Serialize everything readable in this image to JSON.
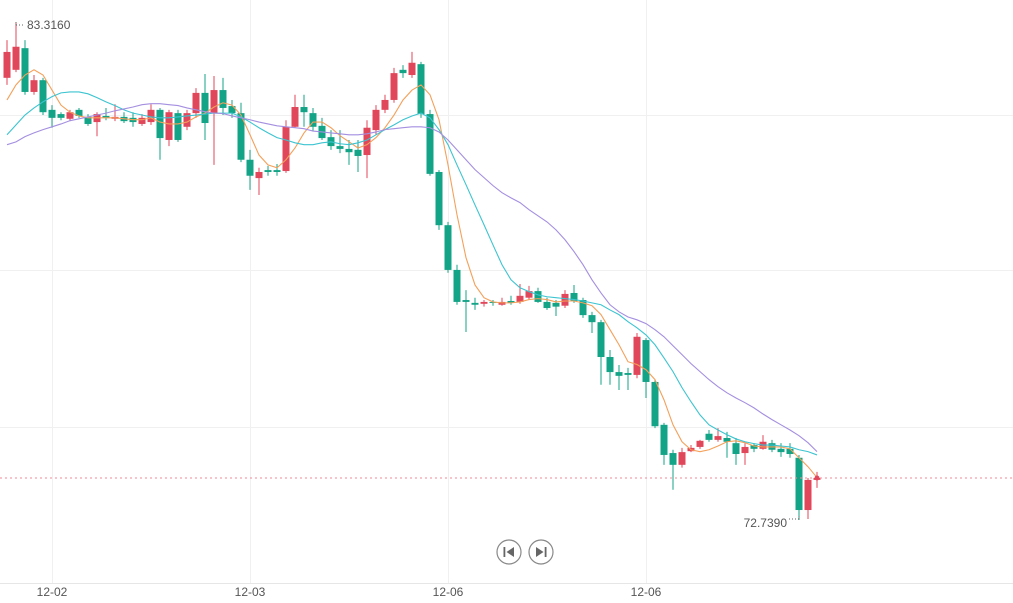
{
  "chart_data": {
    "type": "candlestick",
    "x": [
      null,
      null,
      null,
      null,
      null,
      "12-02",
      null,
      null,
      null,
      null,
      null,
      null,
      null,
      null,
      null,
      null,
      null,
      null,
      null,
      null,
      null,
      null,
      null,
      null,
      null,
      null,
      null,
      "12-03",
      null,
      null,
      null,
      null,
      null,
      null,
      null,
      null,
      null,
      null,
      null,
      null,
      null,
      null,
      null,
      null,
      null,
      null,
      null,
      null,
      null,
      "12-06",
      null,
      null,
      null,
      null,
      null,
      null,
      null,
      null,
      null,
      null,
      null,
      null,
      null,
      null,
      null,
      null,
      null,
      null,
      null,
      null,
      null,
      "12-06",
      null,
      null,
      null,
      null,
      null,
      null,
      null,
      null,
      null,
      null,
      null,
      null,
      null,
      null,
      null,
      null,
      null,
      null,
      null
    ],
    "open": [
      82.13,
      82.3,
      82.76,
      81.83,
      82.08,
      81.45,
      81.36,
      81.26,
      81.45,
      81.3,
      81.19,
      81.32,
      81.26,
      81.3,
      81.28,
      81.15,
      81.19,
      81.45,
      80.81,
      81.38,
      81.09,
      81.38,
      81.81,
      81.38,
      81.87,
      81.53,
      81.38,
      80.39,
      80.0,
      80.17,
      80.17,
      80.15,
      81.09,
      81.51,
      81.38,
      81.11,
      80.87,
      80.68,
      80.62,
      80.6,
      80.49,
      81.02,
      81.45,
      81.66,
      82.3,
      82.19,
      82.42,
      81.36,
      80.13,
      79.0,
      78.05,
      77.41,
      77.35,
      77.33,
      77.37,
      77.31,
      77.39,
      77.37,
      77.46,
      77.6,
      77.37,
      77.35,
      77.29,
      77.56,
      77.41,
      77.09,
      76.94,
      76.2,
      75.88,
      75.86,
      75.82,
      76.56,
      75.67,
      74.76,
      74.16,
      73.91,
      74.2,
      74.29,
      74.57,
      74.44,
      74.48,
      74.37,
      74.16,
      74.33,
      74.25,
      74.37,
      74.25,
      74.25,
      74.06,
      72.95,
      73.59
    ],
    "high": [
      82.93,
      83.316,
      82.93,
      82.19,
      82.13,
      81.55,
      81.4,
      81.45,
      81.49,
      81.36,
      81.4,
      81.49,
      81.57,
      81.4,
      81.4,
      81.36,
      81.57,
      81.49,
      81.45,
      81.45,
      81.45,
      81.91,
      82.21,
      82.17,
      82.13,
      81.66,
      81.6,
      80.6,
      80.22,
      80.26,
      80.3,
      81.23,
      81.77,
      81.77,
      81.49,
      81.28,
      81.02,
      81.02,
      80.81,
      80.81,
      81.23,
      81.55,
      81.77,
      82.34,
      82.4,
      82.68,
      82.47,
      81.45,
      80.17,
      79.07,
      78.16,
      77.62,
      77.46,
      77.41,
      77.41,
      77.46,
      77.5,
      77.75,
      77.71,
      77.67,
      77.46,
      77.41,
      77.62,
      77.73,
      77.46,
      77.16,
      76.99,
      76.35,
      76.03,
      75.97,
      76.71,
      76.6,
      75.71,
      74.8,
      74.23,
      74.27,
      74.33,
      74.44,
      74.65,
      74.69,
      74.61,
      74.48,
      74.37,
      74.37,
      74.54,
      74.44,
      74.37,
      74.37,
      74.12,
      73.63,
      73.76
    ],
    "low": [
      81.98,
      82.25,
      81.77,
      81.77,
      81.34,
      81.07,
      81.23,
      81.21,
      81.28,
      81.11,
      80.89,
      81.23,
      81.21,
      81.17,
      81.09,
      81.11,
      81.13,
      80.39,
      80.68,
      80.77,
      81.02,
      81.28,
      80.81,
      80.28,
      81.34,
      81.28,
      80.34,
      79.75,
      79.64,
      80.05,
      80.05,
      80.11,
      81.07,
      81.09,
      81.0,
      80.81,
      80.6,
      80.53,
      80.28,
      80.13,
      80.0,
      80.92,
      81.38,
      81.6,
      82.13,
      82.13,
      81.28,
      80.05,
      78.9,
      77.99,
      77.31,
      76.73,
      77.2,
      77.27,
      77.29,
      77.29,
      77.31,
      77.33,
      77.41,
      77.35,
      77.2,
      77.07,
      77.24,
      77.35,
      77.03,
      76.71,
      75.61,
      75.61,
      75.5,
      75.5,
      75.75,
      75.33,
      74.69,
      73.91,
      73.38,
      73.85,
      74.18,
      74.25,
      74.4,
      74.4,
      74.06,
      73.91,
      73.91,
      74.18,
      74.23,
      74.18,
      74.08,
      74.06,
      72.739,
      72.76,
      73.42
    ],
    "close": [
      82.68,
      82.79,
      81.83,
      82.08,
      81.4,
      81.28,
      81.28,
      81.4,
      81.32,
      81.15,
      81.36,
      81.28,
      81.3,
      81.21,
      81.19,
      81.28,
      81.45,
      80.85,
      81.4,
      80.81,
      81.38,
      81.81,
      81.17,
      81.87,
      81.49,
      81.38,
      80.39,
      80.05,
      80.13,
      80.13,
      80.13,
      81.09,
      81.51,
      81.4,
      81.09,
      80.85,
      80.68,
      80.62,
      80.55,
      80.47,
      81.07,
      81.45,
      81.66,
      82.23,
      82.23,
      82.45,
      81.36,
      80.09,
      79.0,
      78.05,
      77.37,
      77.37,
      77.31,
      77.37,
      77.35,
      77.37,
      77.35,
      77.5,
      77.6,
      77.37,
      77.24,
      77.27,
      77.54,
      77.39,
      77.09,
      76.94,
      76.2,
      75.88,
      75.8,
      75.82,
      76.63,
      75.67,
      74.73,
      74.12,
      73.91,
      74.18,
      74.27,
      74.42,
      74.44,
      74.52,
      74.4,
      74.14,
      74.29,
      74.25,
      74.4,
      74.23,
      74.18,
      74.14,
      72.95,
      73.59,
      73.63
    ],
    "up_color": "#e0475b",
    "down_color": "#13a386",
    "lines": [
      {
        "color": "#f4a05a",
        "values": [
          81.66,
          81.98,
          82.19,
          82.3,
          82.19,
          81.87,
          81.55,
          81.4,
          81.32,
          81.28,
          81.28,
          81.28,
          81.28,
          81.26,
          81.24,
          81.24,
          81.28,
          81.19,
          81.15,
          81.15,
          81.19,
          81.3,
          81.38,
          81.51,
          81.6,
          81.55,
          81.34,
          80.92,
          80.49,
          80.28,
          80.22,
          80.39,
          80.64,
          80.96,
          81.19,
          81.19,
          81.07,
          80.9,
          80.77,
          80.64,
          80.71,
          80.86,
          81.07,
          81.34,
          81.66,
          81.87,
          81.98,
          81.77,
          81.24,
          80.28,
          79.22,
          78.31,
          77.73,
          77.46,
          77.37,
          77.35,
          77.35,
          77.37,
          77.42,
          77.44,
          77.42,
          77.37,
          77.39,
          77.39,
          77.35,
          77.29,
          77.1,
          76.78,
          76.46,
          76.1,
          76.04,
          75.93,
          75.72,
          75.29,
          74.76,
          74.4,
          74.23,
          74.19,
          74.23,
          74.31,
          74.4,
          74.42,
          74.38,
          74.31,
          74.29,
          74.29,
          74.29,
          74.25,
          74.06,
          73.87,
          73.64
        ]
      },
      {
        "color": "#3cc4d0",
        "values": [
          80.92,
          81.13,
          81.34,
          81.49,
          81.62,
          81.73,
          81.81,
          81.83,
          81.83,
          81.79,
          81.71,
          81.62,
          81.54,
          81.45,
          81.38,
          81.34,
          81.3,
          81.28,
          81.28,
          81.3,
          81.32,
          81.34,
          81.36,
          81.38,
          81.38,
          81.38,
          81.3,
          81.19,
          81.07,
          80.96,
          80.86,
          80.81,
          80.75,
          80.71,
          80.71,
          80.75,
          80.77,
          80.73,
          80.71,
          80.75,
          80.81,
          80.92,
          81.03,
          81.13,
          81.24,
          81.32,
          81.38,
          81.28,
          81.03,
          80.71,
          80.28,
          79.86,
          79.43,
          79.01,
          78.58,
          78.16,
          77.84,
          77.67,
          77.59,
          77.52,
          77.48,
          77.46,
          77.44,
          77.42,
          77.39,
          77.35,
          77.31,
          77.2,
          77.1,
          76.95,
          76.82,
          76.67,
          76.46,
          76.18,
          75.89,
          75.55,
          75.25,
          74.97,
          74.76,
          74.65,
          74.55,
          74.46,
          74.4,
          74.36,
          74.33,
          74.33,
          74.31,
          74.29,
          74.23,
          74.19,
          74.12
        ]
      },
      {
        "color": "#a48fe0",
        "values": [
          80.71,
          80.77,
          80.88,
          80.96,
          81.03,
          81.09,
          81.15,
          81.22,
          81.26,
          81.3,
          81.34,
          81.38,
          81.43,
          81.47,
          81.51,
          81.56,
          81.58,
          81.58,
          81.56,
          81.54,
          81.49,
          81.45,
          81.41,
          81.38,
          81.37,
          81.32,
          81.28,
          81.24,
          81.19,
          81.15,
          81.11,
          81.09,
          81.07,
          81.05,
          81.0,
          80.98,
          80.96,
          80.94,
          80.92,
          80.92,
          80.94,
          80.98,
          81.03,
          81.05,
          81.07,
          81.09,
          81.09,
          81.07,
          80.98,
          80.81,
          80.6,
          80.39,
          80.18,
          80.01,
          79.84,
          79.69,
          79.58,
          79.48,
          79.33,
          79.2,
          79.07,
          78.9,
          78.69,
          78.44,
          78.16,
          77.84,
          77.56,
          77.31,
          77.16,
          77.05,
          76.99,
          76.91,
          76.78,
          76.63,
          76.44,
          76.25,
          76.06,
          75.89,
          75.72,
          75.57,
          75.44,
          75.33,
          75.23,
          75.12,
          74.99,
          74.87,
          74.76,
          74.65,
          74.53,
          74.38,
          74.19
        ]
      }
    ],
    "annotations": [
      {
        "value": 83.316,
        "label": "83.3160"
      },
      {
        "value": 72.739,
        "label": "72.7390"
      }
    ],
    "ylim": [
      71.4,
      83.783
    ],
    "grid": true
  }
}
